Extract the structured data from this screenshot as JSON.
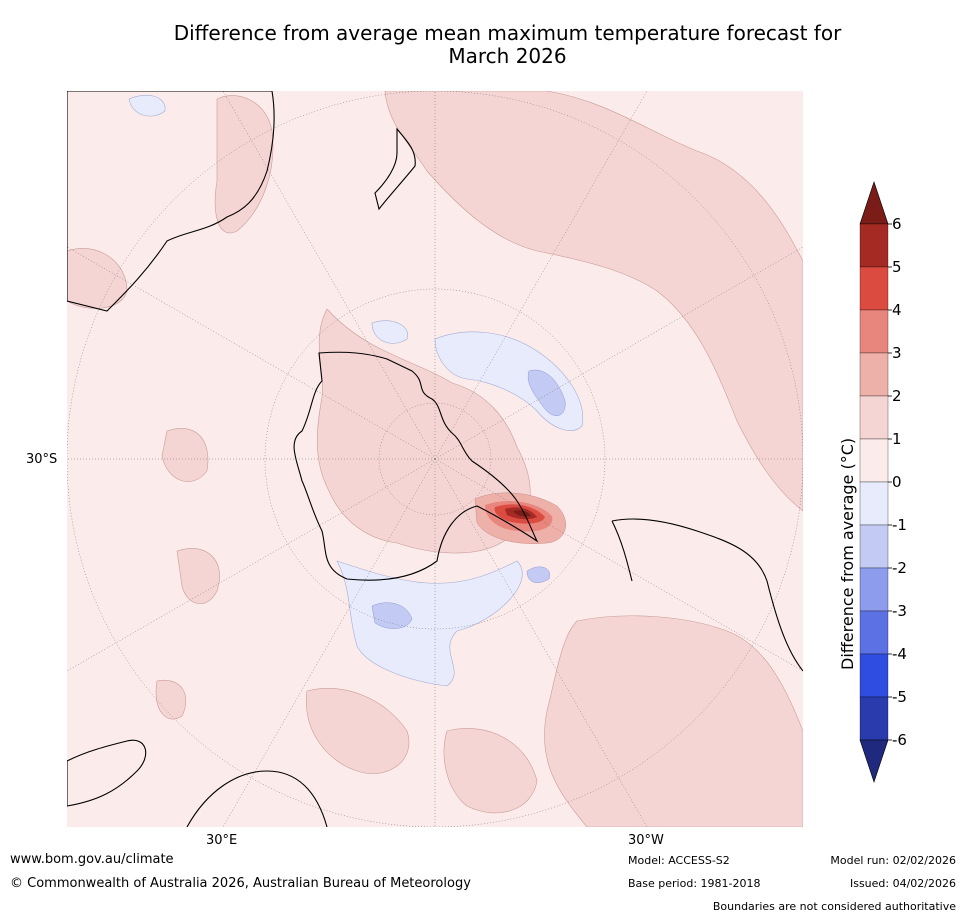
{
  "title": {
    "line1": "Difference from average mean maximum temperature forecast for",
    "line2": "March 2026"
  },
  "map": {
    "latitude_label": "30°S",
    "longitude_labels": {
      "east": "30°E",
      "west": "30°W"
    }
  },
  "colorbar": {
    "label": "Difference from average (°C)",
    "ticks": [
      "6",
      "5",
      "4",
      "3",
      "2",
      "1",
      "0",
      "-1",
      "-2",
      "-3",
      "-4",
      "-5",
      "-6"
    ],
    "colors": {
      "above_6": "#7a1c17",
      "5_to_6": "#a52a24",
      "4_to_5": "#dc4b40",
      "3_to_4": "#e8867d",
      "2_to_3": "#eeb1aa",
      "1_to_2": "#f5d5d3",
      "0_to_1": "#fbebea",
      "neg1_to_0": "#e7ebfb",
      "neg2_to_neg1": "#c3caf3",
      "neg3_to_neg2": "#8e9cee",
      "neg4_to_neg3": "#5c72e4",
      "neg5_to_neg4": "#2f4de0",
      "neg6_to_neg5": "#2a3cad",
      "below_neg6": "#1f2a7e"
    }
  },
  "footer": {
    "url": "www.bom.gov.au/climate",
    "copyright": "© Commonwealth of Australia 2026, Australian Bureau of Meteorology",
    "model": "Model: ACCESS-S2",
    "base_period": "Base period: 1981-2018",
    "model_run": "Model run: 02/02/2026",
    "issued": "Issued: 04/02/2026",
    "disclaimer": "Boundaries are not considered authoritative"
  }
}
